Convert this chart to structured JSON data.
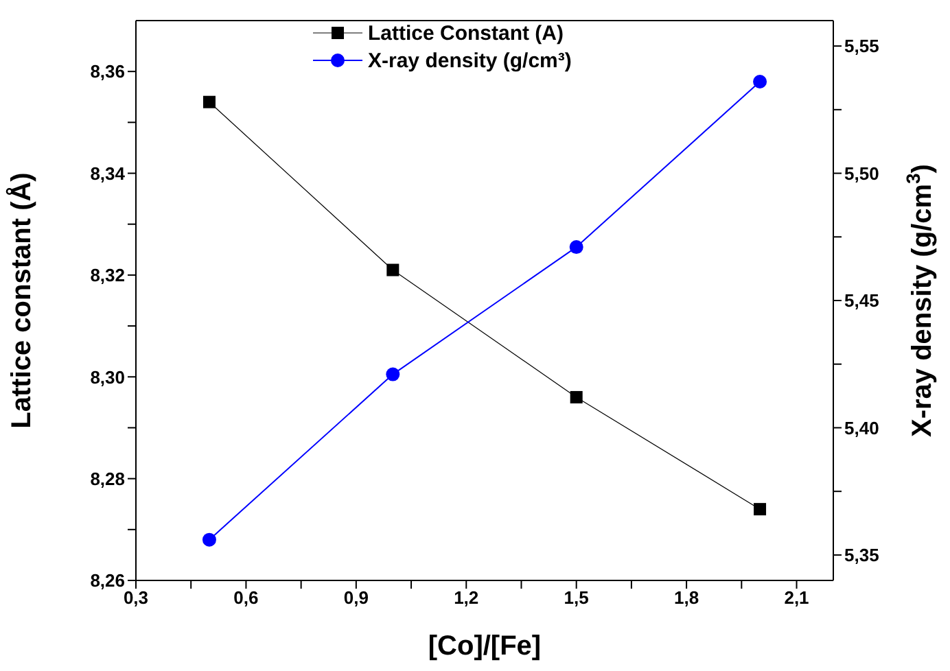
{
  "chart_data": {
    "type": "line",
    "xlabel": "[Co]/[Fe]",
    "ylabel": "Lattice constant (Å)",
    "y2label": "X-ray density (g/cm$^{3}$)",
    "x": [
      0.5,
      1.0,
      1.5,
      2.0
    ],
    "series": [
      {
        "name": "Lattice Constant (A)",
        "color": "#000000",
        "marker": "square",
        "values": [
          8.354,
          8.321,
          8.296,
          8.274
        ]
      },
      {
        "name": "X-ray density (g/cm³)",
        "color": "#0000ff",
        "marker": "circle",
        "axis": "y2",
        "values": [
          5.356,
          5.421,
          5.471,
          5.536
        ]
      }
    ],
    "xlim": [
      0.3,
      2.2
    ],
    "xticks": [
      {
        "value": 0.3,
        "label": "0,3"
      },
      {
        "value": 0.45,
        "label": null
      },
      {
        "value": 0.6,
        "label": "0,6"
      },
      {
        "value": 0.75,
        "label": null
      },
      {
        "value": 0.9,
        "label": "0,9"
      },
      {
        "value": 1.05,
        "label": null
      },
      {
        "value": 1.2,
        "label": "1,2"
      },
      {
        "value": 1.35,
        "label": null
      },
      {
        "value": 1.5,
        "label": "1,5"
      },
      {
        "value": 1.65,
        "label": null
      },
      {
        "value": 1.8,
        "label": "1,8"
      },
      {
        "value": 1.95,
        "label": null
      },
      {
        "value": 2.1,
        "label": "2,1"
      }
    ],
    "ylim": [
      8.26,
      8.37
    ],
    "yticks": [
      {
        "value": 8.26,
        "label": "8,26"
      },
      {
        "value": 8.27,
        "label": null
      },
      {
        "value": 8.28,
        "label": "8,28"
      },
      {
        "value": 8.29,
        "label": null
      },
      {
        "value": 8.3,
        "label": "8,30"
      },
      {
        "value": 8.31,
        "label": null
      },
      {
        "value": 8.32,
        "label": "8,32"
      },
      {
        "value": 8.33,
        "label": null
      },
      {
        "value": 8.34,
        "label": "8,34"
      },
      {
        "value": 8.35,
        "label": null
      },
      {
        "value": 8.36,
        "label": "8,36"
      }
    ],
    "y2lim": [
      5.34,
      5.56
    ],
    "y2ticks": [
      {
        "value": 5.35,
        "label": "5,35"
      },
      {
        "value": 5.375,
        "label": null
      },
      {
        "value": 5.4,
        "label": "5,40"
      },
      {
        "value": 5.425,
        "label": null
      },
      {
        "value": 5.45,
        "label": "5,45"
      },
      {
        "value": 5.475,
        "label": null
      },
      {
        "value": 5.5,
        "label": "5,50"
      },
      {
        "value": 5.525,
        "label": null
      },
      {
        "value": 5.55,
        "label": "5,55"
      }
    ],
    "legend": "top",
    "grid": false,
    "line_style": "solid"
  }
}
